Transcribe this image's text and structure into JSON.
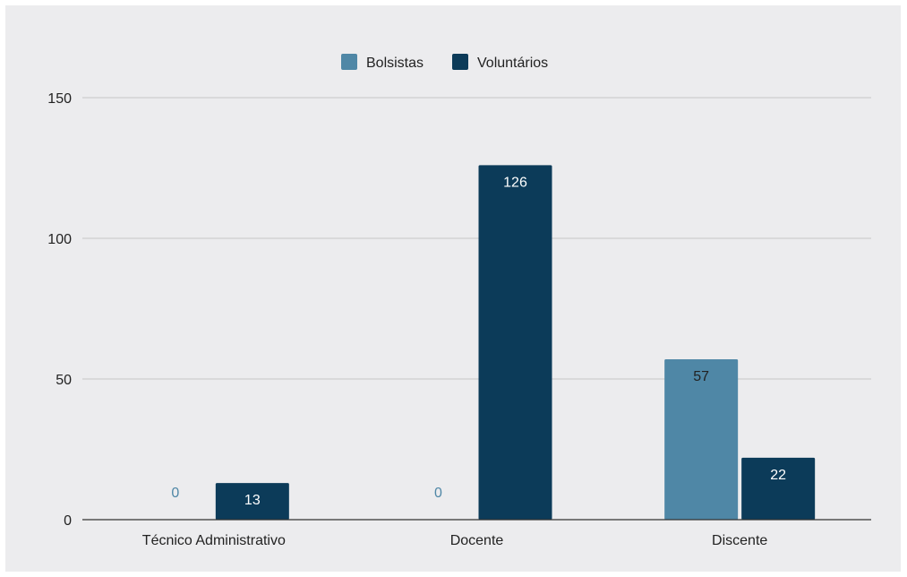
{
  "chart_data": {
    "type": "bar",
    "categories": [
      "Técnico Administrativo",
      "Docente",
      "Discente"
    ],
    "series": [
      {
        "name": "Bolsistas",
        "values": [
          0,
          0,
          57
        ],
        "color": "#4f87a6"
      },
      {
        "name": "Voluntários",
        "values": [
          13,
          126,
          22
        ],
        "color": "#0c3b59"
      }
    ],
    "ylim": [
      0,
      150
    ],
    "yticks": [
      0,
      50,
      100,
      150
    ],
    "grid": true,
    "legend_position": "top-center",
    "data_labels": true,
    "title": "",
    "xlabel": "",
    "ylabel": ""
  },
  "colors": {
    "background": "#ececee",
    "gridline": "#c6c6c6",
    "axis": "#333333",
    "label_on_dark": "#ffffff",
    "label_on_light": "#222222",
    "zero_label": "#4f87a6"
  }
}
